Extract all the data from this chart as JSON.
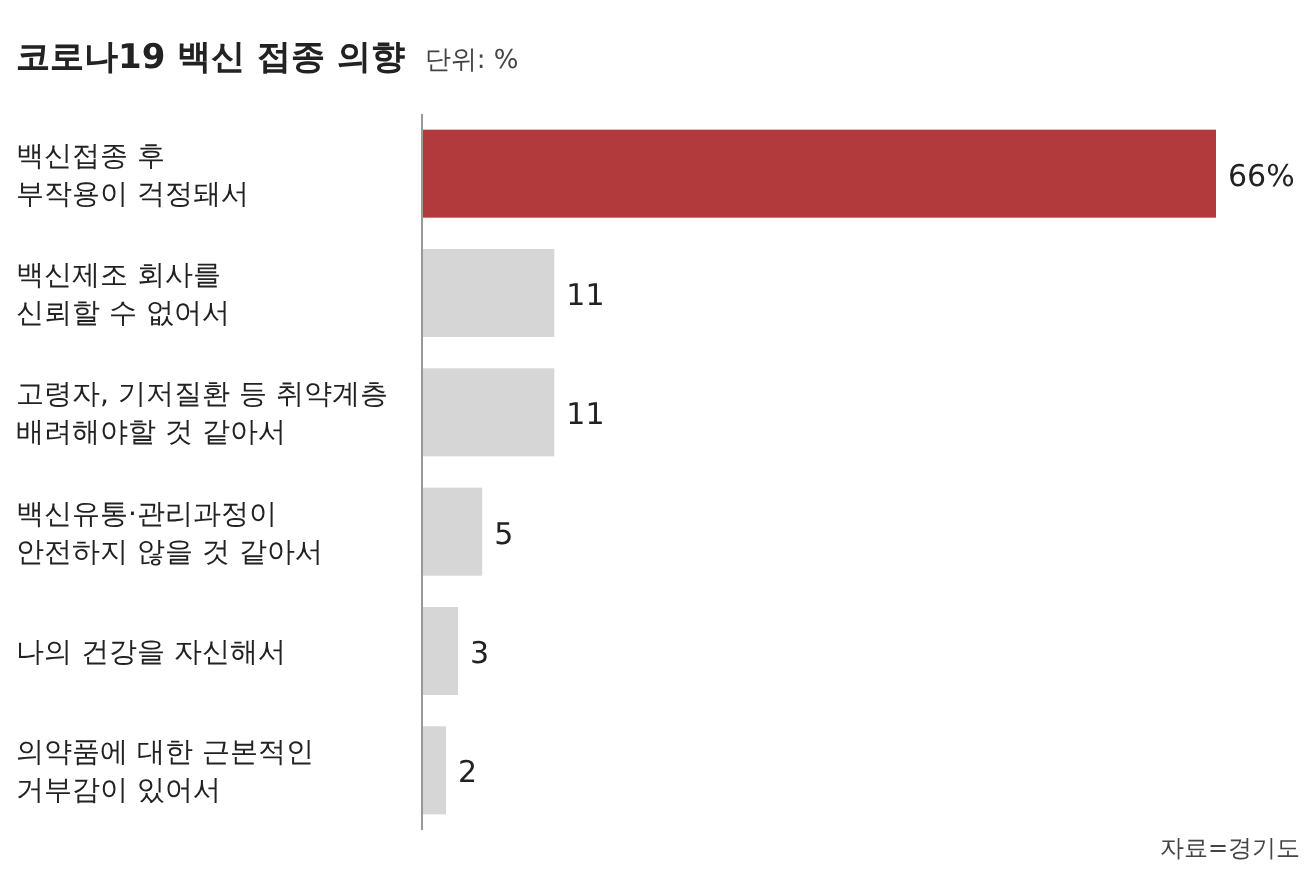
{
  "chart_data": {
    "type": "bar",
    "orientation": "horizontal",
    "title": "코로나19 백신 접종 의향",
    "subtitle": "단위: %",
    "categories": [
      "백신접종 후\n부작용이 걱정돼서",
      "백신제조 회사를\n신뢰할 수 없어서",
      "고령자, 기저질환 등 취약계층\n배려해야할 것 같아서",
      "백신유통·관리과정이\n안전하지 않을 것 같아서",
      "나의 건강을 자신해서",
      "의약품에 대한 근본적인\n거부감이 있어서"
    ],
    "values": [
      66,
      11,
      11,
      5,
      3,
      2
    ],
    "colors": [
      "#b23a3c",
      "#d6d6d6",
      "#d6d6d6",
      "#d6d6d6",
      "#d6d6d6",
      "#d6d6d6"
    ],
    "value_labels": [
      "66%",
      "11",
      "11",
      "5",
      "3",
      "2"
    ],
    "xlim": [
      0,
      66
    ],
    "annotations": [
      "자료=경기도"
    ]
  }
}
